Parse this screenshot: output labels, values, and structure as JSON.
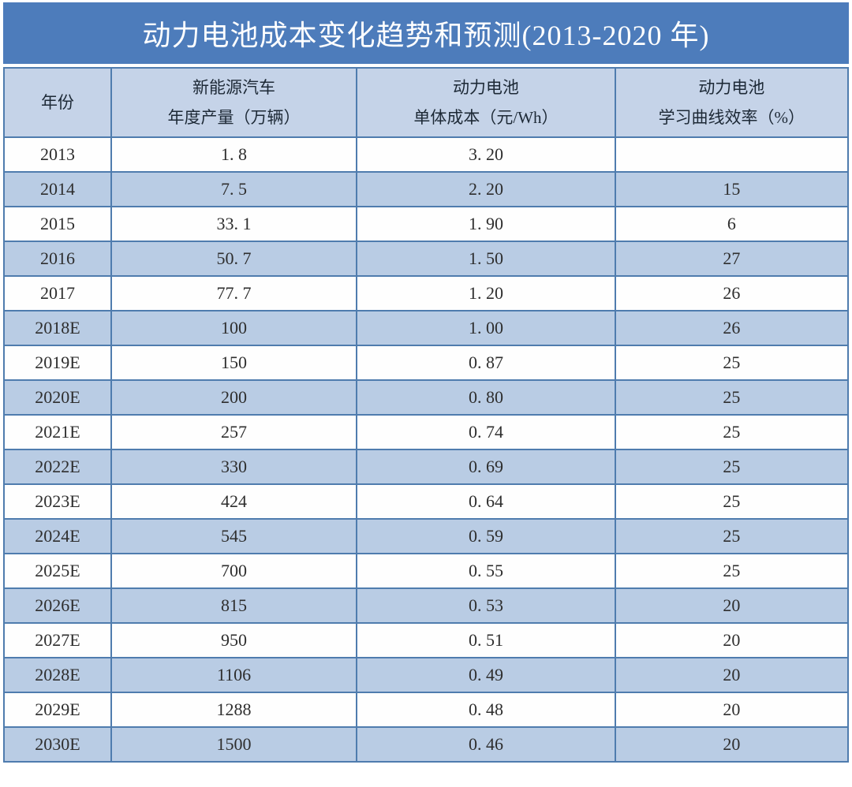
{
  "title": "动力电池成本变化趋势和预测(2013-2020 年)",
  "colors": {
    "title_bar_bg": "#4d7cbb",
    "title_text": "#ffffff",
    "header_bg": "#c5d3e8",
    "stripe_row_bg": "#b9cce4",
    "plain_row_bg": "#fefefe",
    "border": "#4f7cae",
    "cell_text": "#2e2e2e"
  },
  "table": {
    "columns": [
      {
        "line1": "年份",
        "line2": ""
      },
      {
        "line1": "新能源汽车",
        "line2": "年度产量（万辆）"
      },
      {
        "line1": "动力电池",
        "line2": "单体成本（元/Wh）"
      },
      {
        "line1": "动力电池",
        "line2": "学习曲线效率（%）"
      }
    ],
    "rows": [
      [
        "2013",
        "1. 8",
        "3. 20",
        ""
      ],
      [
        "2014",
        "7. 5",
        "2. 20",
        "15"
      ],
      [
        "2015",
        "33. 1",
        "1. 90",
        "6"
      ],
      [
        "2016",
        "50. 7",
        "1. 50",
        "27"
      ],
      [
        "2017",
        "77. 7",
        "1. 20",
        "26"
      ],
      [
        "2018E",
        "100",
        "1. 00",
        "26"
      ],
      [
        "2019E",
        "150",
        "0. 87",
        "25"
      ],
      [
        "2020E",
        "200",
        "0. 80",
        "25"
      ],
      [
        "2021E",
        "257",
        "0. 74",
        "25"
      ],
      [
        "2022E",
        "330",
        "0. 69",
        "25"
      ],
      [
        "2023E",
        "424",
        "0. 64",
        "25"
      ],
      [
        "2024E",
        "545",
        "0. 59",
        "25"
      ],
      [
        "2025E",
        "700",
        "0. 55",
        "25"
      ],
      [
        "2026E",
        "815",
        "0. 53",
        "20"
      ],
      [
        "2027E",
        "950",
        "0. 51",
        "20"
      ],
      [
        "2028E",
        "1106",
        "0. 49",
        "20"
      ],
      [
        "2029E",
        "1288",
        "0. 48",
        "20"
      ],
      [
        "2030E",
        "1500",
        "0. 46",
        "20"
      ]
    ]
  },
  "chart_data": {
    "type": "table",
    "title": "动力电池成本变化趋势和预测(2013-2020 年)",
    "columns": [
      "年份",
      "新能源汽车年度产量（万辆）",
      "动力电池单体成本（元/Wh）",
      "动力电池学习曲线效率（%）"
    ],
    "rows": [
      [
        "2013",
        1.8,
        3.2,
        null
      ],
      [
        "2014",
        7.5,
        2.2,
        15
      ],
      [
        "2015",
        33.1,
        1.9,
        6
      ],
      [
        "2016",
        50.7,
        1.5,
        27
      ],
      [
        "2017",
        77.7,
        1.2,
        26
      ],
      [
        "2018E",
        100,
        1.0,
        26
      ],
      [
        "2019E",
        150,
        0.87,
        25
      ],
      [
        "2020E",
        200,
        0.8,
        25
      ],
      [
        "2021E",
        257,
        0.74,
        25
      ],
      [
        "2022E",
        330,
        0.69,
        25
      ],
      [
        "2023E",
        424,
        0.64,
        25
      ],
      [
        "2024E",
        545,
        0.59,
        25
      ],
      [
        "2025E",
        700,
        0.55,
        25
      ],
      [
        "2026E",
        815,
        0.53,
        20
      ],
      [
        "2027E",
        950,
        0.51,
        20
      ],
      [
        "2028E",
        1106,
        0.49,
        20
      ],
      [
        "2029E",
        1288,
        0.48,
        20
      ],
      [
        "2030E",
        1500,
        0.46,
        20
      ]
    ]
  }
}
